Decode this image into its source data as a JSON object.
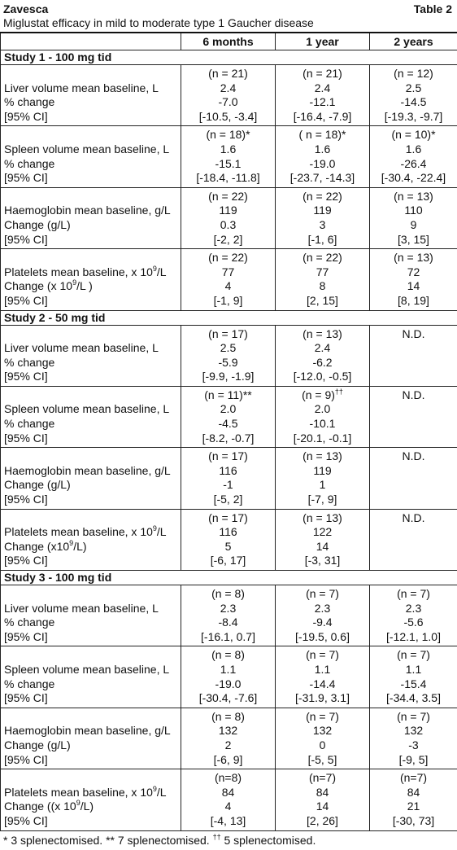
{
  "header": {
    "title": "Zavesca",
    "table_label": "Table 2",
    "subtitle": "Miglustat efficacy in mild to moderate type 1 Gaucher disease"
  },
  "table": {
    "columns": [
      "6 months",
      "1 year",
      "2 years"
    ],
    "sections": [
      {
        "title": "Study 1 - 100 mg tid",
        "blocks": [
          {
            "label": [
              "Liver volume mean baseline, L",
              "% change",
              "[95% CI]"
            ],
            "cells": [
              [
                "(n = 21)",
                "2.4",
                "-7.0",
                "[-10.5, -3.4]"
              ],
              [
                "(n = 21)",
                "2.4",
                "-12.1",
                "[-16.4, -7.9]"
              ],
              [
                "(n = 12)",
                "2.5",
                "-14.5",
                "[-19.3, -9.7]"
              ]
            ]
          },
          {
            "label": [
              "Spleen volume mean baseline, L",
              "% change",
              "[95% CI]"
            ],
            "cells": [
              [
                "(n = 18)*",
                "1.6",
                "-15.1",
                "[-18.4, -11.8]"
              ],
              [
                "( n = 18)*",
                "1.6",
                "-19.0",
                "[-23.7, -14.3]"
              ],
              [
                "(n = 10)*",
                "1.6",
                "-26.4",
                "[-30.4, -22.4]"
              ]
            ]
          },
          {
            "label": [
              "Haemoglobin mean baseline, g/L",
              "Change (g/L)",
              "[95% CI]"
            ],
            "cells": [
              [
                "(n = 22)",
                "119",
                "0.3",
                "[-2, 2]"
              ],
              [
                "(n = 22)",
                "119",
                "3",
                "[-1, 6]"
              ],
              [
                "(n = 13)",
                "110",
                "9",
                "[3, 15]"
              ]
            ]
          },
          {
            "label": [
              [
                "Platelets mean baseline, x 10",
                "9",
                "/L"
              ],
              [
                "Change (x 10",
                "9",
                "/L )"
              ],
              "[95% CI]"
            ],
            "cells": [
              [
                "(n = 22)",
                "77",
                "4",
                "[-1, 9]"
              ],
              [
                "(n = 22)",
                "77",
                "8",
                "[2, 15]"
              ],
              [
                "(n = 13)",
                "72",
                "14",
                "[8, 19]"
              ]
            ]
          }
        ]
      },
      {
        "title": "Study 2 - 50 mg tid",
        "blocks": [
          {
            "label": [
              "Liver volume mean baseline, L",
              "% change",
              "[95% CI]"
            ],
            "cells": [
              [
                "(n = 17)",
                "2.5",
                "-5.9",
                "[-9.9, -1.9]"
              ],
              [
                "(n = 13)",
                "2.4",
                "-6.2",
                "[-12.0, -0.5]"
              ],
              [
                "N.D."
              ]
            ]
          },
          {
            "label": [
              "Spleen volume mean baseline, L",
              "% change",
              "[95% CI]"
            ],
            "cells": [
              [
                "(n = 11)**",
                "2.0",
                "-4.5",
                "[-8.2, -0.7]"
              ],
              [
                [
                  "(n = 9)",
                  "††"
                ],
                "2.0",
                "-10.1",
                "[-20.1, -0.1]"
              ],
              [
                "N.D."
              ]
            ]
          },
          {
            "label": [
              "Haemoglobin mean baseline, g/L",
              "Change (g/L)",
              "[95% CI]"
            ],
            "cells": [
              [
                "(n = 17)",
                "116",
                "-1",
                "[-5, 2]"
              ],
              [
                "(n = 13)",
                "119",
                "1",
                "[-7, 9]"
              ],
              [
                "N.D."
              ]
            ]
          },
          {
            "label": [
              [
                "Platelets mean baseline, x 10",
                "9",
                "/L"
              ],
              [
                "Change (x10",
                "9",
                "/L)"
              ],
              "[95% CI]"
            ],
            "cells": [
              [
                "(n = 17)",
                "116",
                "5",
                "[-6, 17]"
              ],
              [
                "(n = 13)",
                "122",
                "14",
                "[-3, 31]"
              ],
              [
                "N.D."
              ]
            ]
          }
        ]
      },
      {
        "title": "Study 3 - 100 mg tid",
        "blocks": [
          {
            "label": [
              "Liver volume mean baseline, L",
              "% change",
              "[95% CI]"
            ],
            "cells": [
              [
                "(n = 8)",
                "2.3",
                "-8.4",
                "[-16.1, 0.7]"
              ],
              [
                "(n = 7)",
                "2.3",
                "-9.4",
                "[-19.5, 0.6]"
              ],
              [
                "(n = 7)",
                "2.3",
                "-5.6",
                "[-12.1, 1.0]"
              ]
            ]
          },
          {
            "label": [
              "Spleen volume mean baseline, L",
              "% change",
              "[95% CI]"
            ],
            "cells": [
              [
                "(n = 8)",
                "1.1",
                "-19.0",
                "[-30.4, -7.6]"
              ],
              [
                "(n = 7)",
                "1.1",
                "-14.4",
                "[-31.9, 3.1]"
              ],
              [
                "(n = 7)",
                "1.1",
                "-15.4",
                "[-34.4, 3.5]"
              ]
            ]
          },
          {
            "label": [
              "Haemoglobin mean baseline, g/L",
              "Change (g/L)",
              "[95% CI]"
            ],
            "cells": [
              [
                "(n = 8)",
                "132",
                "2",
                "[-6, 9]"
              ],
              [
                "(n = 7)",
                "132",
                "0",
                "[-5, 5]"
              ],
              [
                "(n = 7)",
                "132",
                "-3",
                "[-9, 5]"
              ]
            ]
          },
          {
            "label": [
              [
                "Platelets mean baseline, x 10",
                "9",
                "/L"
              ],
              [
                "Change ((x 10",
                "9",
                "/L)"
              ],
              "[95% CI]"
            ],
            "cells": [
              [
                "(n=8)",
                "84",
                "4",
                "[-4, 13]"
              ],
              [
                "(n=7)",
                "84",
                "14",
                "[2, 26]"
              ],
              [
                "(n=7)",
                "84",
                "21",
                "[-30, 73]"
              ]
            ]
          }
        ]
      }
    ]
  },
  "footnote": [
    "* 3 splenectomised. ** 7 splenectomised. ",
    "††",
    " 5 splenectomised."
  ]
}
